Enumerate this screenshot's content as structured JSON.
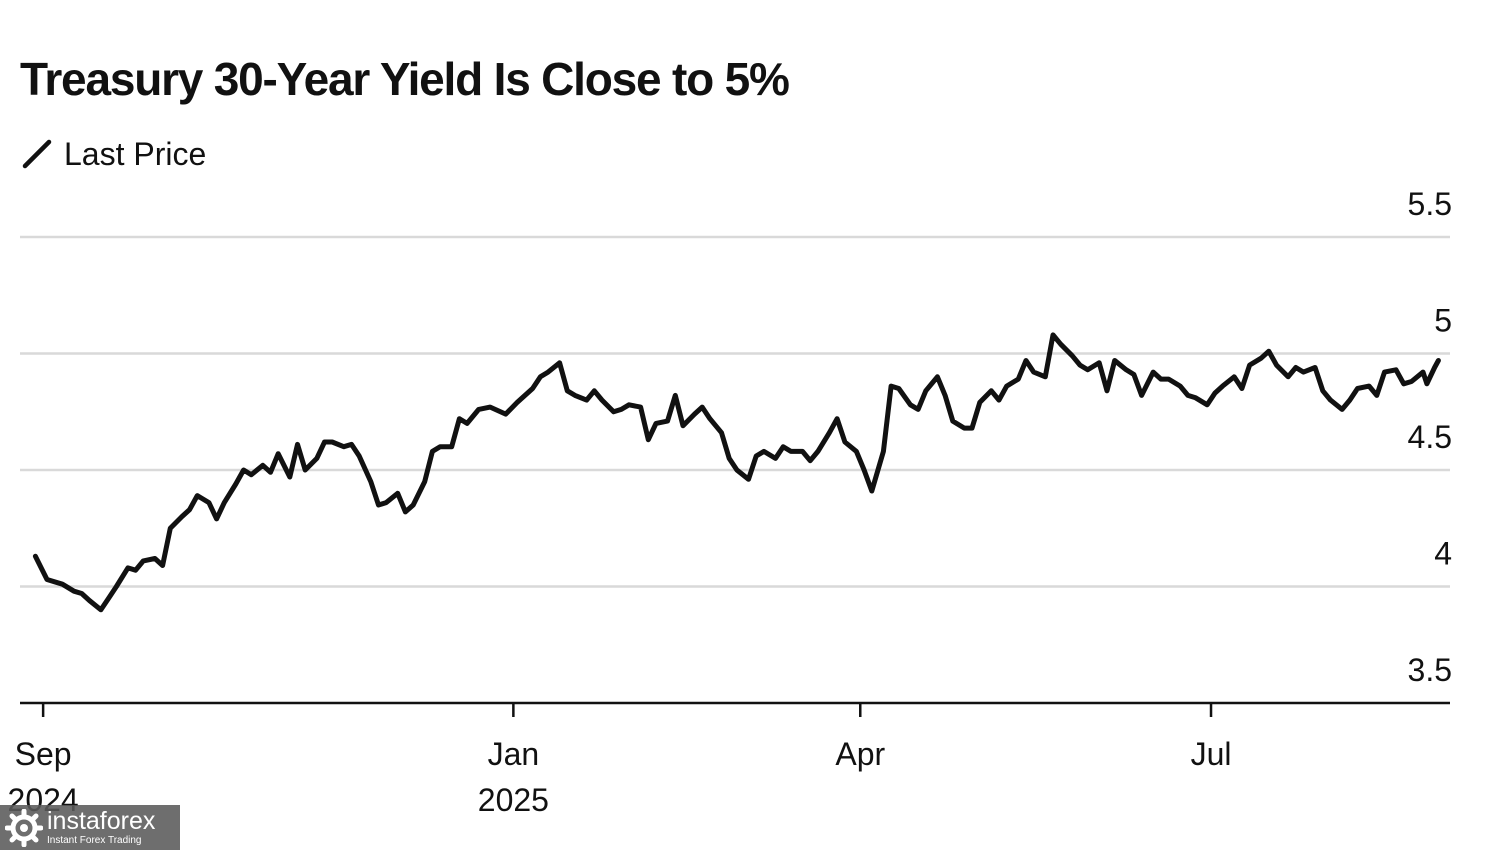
{
  "chart_data": {
    "type": "line",
    "title": "Treasury 30-Year Yield Is Close to 5%",
    "legend": {
      "label": "Last Price",
      "placement": "top-left"
    },
    "x_range": [
      "2024-08-26",
      "2025-09-01"
    ],
    "ylim": [
      3.5,
      5.5
    ],
    "y_ticks": [
      "3.5",
      "4",
      "4.5",
      "5",
      "5.5"
    ],
    "y_axis_side": "right",
    "grid": "horizontal",
    "x_ticks": [
      {
        "date": "2024-09-01",
        "line1": "Sep",
        "line2": "2024"
      },
      {
        "date": "2025-01-01",
        "line1": "Jan",
        "line2": "2025"
      },
      {
        "date": "2025-04-01",
        "line1": "Apr",
        "line2": ""
      },
      {
        "date": "2025-07-01",
        "line1": "Jul",
        "line2": ""
      }
    ],
    "line_color": "#111111",
    "series": [
      {
        "name": "Last Price",
        "points": [
          [
            "2024-08-30",
            4.13
          ],
          [
            "2024-09-02",
            4.03
          ],
          [
            "2024-09-06",
            4.01
          ],
          [
            "2024-09-09",
            3.98
          ],
          [
            "2024-09-11",
            3.97
          ],
          [
            "2024-09-13",
            3.94
          ],
          [
            "2024-09-16",
            3.9
          ],
          [
            "2024-09-18",
            3.95
          ],
          [
            "2024-09-20",
            4.0
          ],
          [
            "2024-09-23",
            4.08
          ],
          [
            "2024-09-25",
            4.07
          ],
          [
            "2024-09-27",
            4.11
          ],
          [
            "2024-09-30",
            4.12
          ],
          [
            "2024-10-02",
            4.09
          ],
          [
            "2024-10-04",
            4.25
          ],
          [
            "2024-10-07",
            4.3
          ],
          [
            "2024-10-09",
            4.33
          ],
          [
            "2024-10-11",
            4.39
          ],
          [
            "2024-10-14",
            4.36
          ],
          [
            "2024-10-16",
            4.29
          ],
          [
            "2024-10-18",
            4.36
          ],
          [
            "2024-10-21",
            4.44
          ],
          [
            "2024-10-23",
            4.5
          ],
          [
            "2024-10-25",
            4.48
          ],
          [
            "2024-10-28",
            4.52
          ],
          [
            "2024-10-30",
            4.49
          ],
          [
            "2024-11-01",
            4.57
          ],
          [
            "2024-11-04",
            4.47
          ],
          [
            "2024-11-06",
            4.61
          ],
          [
            "2024-11-08",
            4.5
          ],
          [
            "2024-11-11",
            4.55
          ],
          [
            "2024-11-13",
            4.62
          ],
          [
            "2024-11-15",
            4.62
          ],
          [
            "2024-11-18",
            4.6
          ],
          [
            "2024-11-20",
            4.61
          ],
          [
            "2024-11-22",
            4.56
          ],
          [
            "2024-11-25",
            4.45
          ],
          [
            "2024-11-27",
            4.35
          ],
          [
            "2024-11-29",
            4.36
          ],
          [
            "2024-12-02",
            4.4
          ],
          [
            "2024-12-04",
            4.32
          ],
          [
            "2024-12-06",
            4.35
          ],
          [
            "2024-12-09",
            4.45
          ],
          [
            "2024-12-11",
            4.58
          ],
          [
            "2024-12-13",
            4.6
          ],
          [
            "2024-12-16",
            4.6
          ],
          [
            "2024-12-18",
            4.72
          ],
          [
            "2024-12-20",
            4.7
          ],
          [
            "2024-12-23",
            4.76
          ],
          [
            "2024-12-26",
            4.77
          ],
          [
            "2024-12-30",
            4.74
          ],
          [
            "2025-01-02",
            4.79
          ],
          [
            "2025-01-06",
            4.85
          ],
          [
            "2025-01-08",
            4.9
          ],
          [
            "2025-01-10",
            4.92
          ],
          [
            "2025-01-13",
            4.96
          ],
          [
            "2025-01-15",
            4.84
          ],
          [
            "2025-01-17",
            4.82
          ],
          [
            "2025-01-20",
            4.8
          ],
          [
            "2025-01-22",
            4.84
          ],
          [
            "2025-01-24",
            4.8
          ],
          [
            "2025-01-27",
            4.75
          ],
          [
            "2025-01-29",
            4.76
          ],
          [
            "2025-01-31",
            4.78
          ],
          [
            "2025-02-03",
            4.77
          ],
          [
            "2025-02-05",
            4.63
          ],
          [
            "2025-02-07",
            4.7
          ],
          [
            "2025-02-10",
            4.71
          ],
          [
            "2025-02-12",
            4.82
          ],
          [
            "2025-02-14",
            4.69
          ],
          [
            "2025-02-17",
            4.74
          ],
          [
            "2025-02-19",
            4.77
          ],
          [
            "2025-02-21",
            4.72
          ],
          [
            "2025-02-24",
            4.66
          ],
          [
            "2025-02-26",
            4.55
          ],
          [
            "2025-02-28",
            4.5
          ],
          [
            "2025-03-03",
            4.46
          ],
          [
            "2025-03-05",
            4.56
          ],
          [
            "2025-03-07",
            4.58
          ],
          [
            "2025-03-10",
            4.55
          ],
          [
            "2025-03-12",
            4.6
          ],
          [
            "2025-03-14",
            4.58
          ],
          [
            "2025-03-17",
            4.58
          ],
          [
            "2025-03-19",
            4.54
          ],
          [
            "2025-03-21",
            4.58
          ],
          [
            "2025-03-24",
            4.66
          ],
          [
            "2025-03-26",
            4.72
          ],
          [
            "2025-03-28",
            4.62
          ],
          [
            "2025-03-31",
            4.58
          ],
          [
            "2025-04-02",
            4.5
          ],
          [
            "2025-04-04",
            4.41
          ],
          [
            "2025-04-07",
            4.58
          ],
          [
            "2025-04-09",
            4.86
          ],
          [
            "2025-04-11",
            4.85
          ],
          [
            "2025-04-14",
            4.78
          ],
          [
            "2025-04-16",
            4.76
          ],
          [
            "2025-04-18",
            4.84
          ],
          [
            "2025-04-21",
            4.9
          ],
          [
            "2025-04-23",
            4.82
          ],
          [
            "2025-04-25",
            4.71
          ],
          [
            "2025-04-28",
            4.68
          ],
          [
            "2025-04-30",
            4.68
          ],
          [
            "2025-05-02",
            4.79
          ],
          [
            "2025-05-05",
            4.84
          ],
          [
            "2025-05-07",
            4.8
          ],
          [
            "2025-05-09",
            4.86
          ],
          [
            "2025-05-12",
            4.89
          ],
          [
            "2025-05-14",
            4.97
          ],
          [
            "2025-05-16",
            4.92
          ],
          [
            "2025-05-19",
            4.9
          ],
          [
            "2025-05-21",
            5.08
          ],
          [
            "2025-05-23",
            5.04
          ],
          [
            "2025-05-26",
            4.99
          ],
          [
            "2025-05-28",
            4.95
          ],
          [
            "2025-05-30",
            4.93
          ],
          [
            "2025-06-02",
            4.96
          ],
          [
            "2025-06-04",
            4.84
          ],
          [
            "2025-06-06",
            4.97
          ],
          [
            "2025-06-09",
            4.93
          ],
          [
            "2025-06-11",
            4.91
          ],
          [
            "2025-06-13",
            4.82
          ],
          [
            "2025-06-16",
            4.92
          ],
          [
            "2025-06-18",
            4.89
          ],
          [
            "2025-06-20",
            4.89
          ],
          [
            "2025-06-23",
            4.86
          ],
          [
            "2025-06-25",
            4.82
          ],
          [
            "2025-06-27",
            4.81
          ],
          [
            "2025-06-30",
            4.78
          ],
          [
            "2025-07-02",
            4.83
          ],
          [
            "2025-07-04",
            4.86
          ],
          [
            "2025-07-07",
            4.9
          ],
          [
            "2025-07-09",
            4.85
          ],
          [
            "2025-07-11",
            4.95
          ],
          [
            "2025-07-14",
            4.98
          ],
          [
            "2025-07-16",
            5.01
          ],
          [
            "2025-07-18",
            4.95
          ],
          [
            "2025-07-21",
            4.9
          ],
          [
            "2025-07-23",
            4.94
          ],
          [
            "2025-07-25",
            4.92
          ],
          [
            "2025-07-28",
            4.94
          ],
          [
            "2025-07-30",
            4.84
          ],
          [
            "2025-08-01",
            4.8
          ],
          [
            "2025-08-04",
            4.76
          ],
          [
            "2025-08-06",
            4.8
          ],
          [
            "2025-08-08",
            4.85
          ],
          [
            "2025-08-11",
            4.86
          ],
          [
            "2025-08-13",
            4.82
          ],
          [
            "2025-08-15",
            4.92
          ],
          [
            "2025-08-18",
            4.93
          ],
          [
            "2025-08-20",
            4.87
          ],
          [
            "2025-08-22",
            4.88
          ],
          [
            "2025-08-25",
            4.92
          ],
          [
            "2025-08-26",
            4.87
          ],
          [
            "2025-08-28",
            4.94
          ],
          [
            "2025-08-29",
            4.97
          ]
        ]
      }
    ]
  },
  "watermark": {
    "name": "instaforex",
    "tagline": "Instant Forex Trading"
  }
}
